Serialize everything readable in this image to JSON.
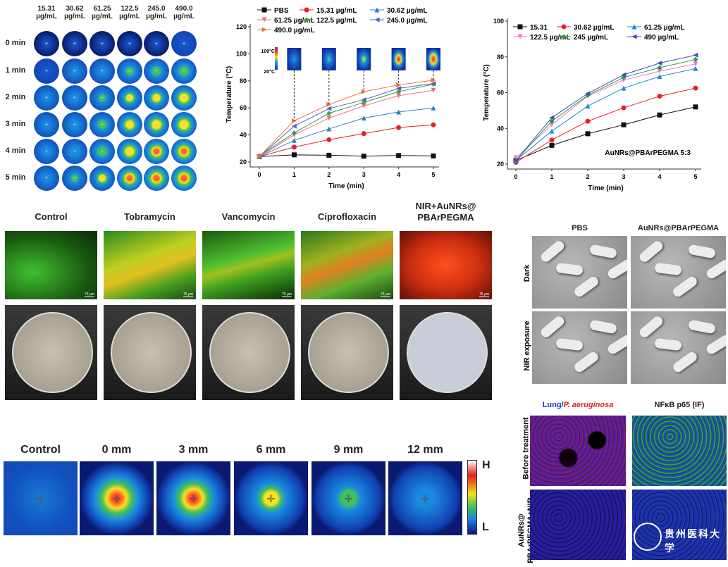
{
  "thermal_grid": {
    "columns": [
      "15.31\nµg/mL",
      "30.62\nµg/mL",
      "61.25\nµg/mL",
      "122.5\nµg/mL",
      "245.0\nµg/mL",
      "490.0\nµg/mL"
    ],
    "col_top": [
      "15.31",
      "30.62",
      "61.25",
      "122.5",
      "245.0",
      "490.0"
    ],
    "col_unit": "µg/mL",
    "rows": [
      "0 min",
      "1 min",
      "2 min",
      "3 min",
      "4 min",
      "5 min"
    ],
    "heat_levels": [
      [
        0,
        0,
        0,
        0,
        0,
        0.1
      ],
      [
        0.1,
        0.15,
        0.2,
        0.4,
        0.45,
        0.5
      ],
      [
        0.15,
        0.2,
        0.35,
        0.55,
        0.6,
        0.7
      ],
      [
        0.15,
        0.25,
        0.45,
        0.65,
        0.72,
        0.75
      ],
      [
        0.2,
        0.3,
        0.5,
        0.72,
        0.78,
        0.8
      ],
      [
        0.22,
        0.35,
        0.55,
        0.78,
        0.82,
        0.85
      ]
    ]
  },
  "chart_data": [
    {
      "type": "line",
      "xlabel": "Time (min)",
      "ylabel": "Temperature (°C)",
      "xlim": [
        0,
        5
      ],
      "ylim": [
        20,
        120
      ],
      "xticks": [
        0,
        1,
        2,
        3,
        4,
        5
      ],
      "yticks": [
        20,
        40,
        60,
        80,
        100,
        120
      ],
      "legend_position": "top",
      "x": [
        0,
        1,
        2,
        3,
        4,
        5
      ],
      "inset": {
        "top_label": "100°C",
        "bottom_label": "20°C"
      },
      "series": [
        {
          "name": "PBS",
          "values": [
            24,
            25.3,
            25,
            24.3,
            24.8,
            24.5
          ],
          "color": "#111111",
          "marker": "square"
        },
        {
          "name": "15.31 µg/mL",
          "values": [
            24,
            31,
            36.5,
            41,
            45.5,
            47.5
          ],
          "color": "#e8202a",
          "marker": "circle"
        },
        {
          "name": "30.62 µg/mL",
          "values": [
            24,
            36,
            44.5,
            52.5,
            57,
            60
          ],
          "color": "#2f7fc8",
          "marker": "triangle-up"
        },
        {
          "name": "61.25 µg/mL",
          "values": [
            24,
            40,
            52.5,
            61.5,
            69,
            73
          ],
          "color": "#ef6f8a",
          "marker": "triangle-down"
        },
        {
          "name": "122.5 µg/mL",
          "values": [
            24.5,
            41.5,
            56,
            64,
            72,
            77.5
          ],
          "color": "#3aa24a",
          "marker": "diamond"
        },
        {
          "name": "245.0 µg/mL",
          "values": [
            24,
            46.5,
            59.5,
            66,
            74.5,
            78
          ],
          "color": "#4a66b8",
          "marker": "triangle-left"
        },
        {
          "name": "490.0 µg/mL",
          "values": [
            24,
            50.5,
            62.5,
            72,
            77,
            80.5
          ],
          "color": "#f07040",
          "marker": "triangle-right"
        }
      ]
    },
    {
      "type": "line",
      "xlabel": "Time (min)",
      "ylabel": "Temperature (°C)",
      "xlim": [
        0,
        5
      ],
      "ylim": [
        20,
        100
      ],
      "xticks": [
        0,
        1,
        2,
        3,
        4,
        5
      ],
      "yticks": [
        20,
        40,
        60,
        80,
        100
      ],
      "legend_position": "top",
      "annotation": "AuNRs@PBArPEGMA 5:3",
      "x": [
        0,
        1,
        2,
        3,
        4,
        5
      ],
      "series": [
        {
          "name": "15.31",
          "values": [
            22,
            30.5,
            37,
            42,
            47.5,
            52
          ],
          "color": "#111111",
          "marker": "square"
        },
        {
          "name": "30.62 µg/mL",
          "values": [
            21,
            33.5,
            44,
            51.5,
            58,
            62.5
          ],
          "color": "#e8202a",
          "marker": "circle"
        },
        {
          "name": "61.25 µg/mL",
          "values": [
            22,
            38.5,
            52.5,
            62.5,
            69,
            73.5
          ],
          "color": "#1f8ad0",
          "marker": "triangle-up"
        },
        {
          "name": "122.5 µg/mL",
          "values": [
            23.5,
            42,
            58,
            67,
            72,
            76
          ],
          "color": "#f07ad0",
          "marker": "triangle-down"
        },
        {
          "name": "245 µg/mL",
          "values": [
            22,
            44,
            58.5,
            68.5,
            74,
            78.5
          ],
          "color": "#20a040",
          "marker": "diamond"
        },
        {
          "name": "490 µg/mL",
          "values": [
            22,
            46,
            59.5,
            70,
            76.5,
            81
          ],
          "color": "#4050b0",
          "marker": "triangle-left"
        }
      ]
    }
  ],
  "biofilm": {
    "groups": [
      "Control",
      "Tobramycin",
      "Vancomycin",
      "Ciprofloxacin",
      "NIR+AuNRs@\nPBArPEGMA"
    ],
    "scale_bar": "75 µm"
  },
  "sem": {
    "columns": [
      "PBS",
      "AuNRs@PBArPEGMA"
    ],
    "rows": [
      "Dark",
      "NIR exposure"
    ]
  },
  "distance": {
    "labels": [
      "Control",
      "0 mm",
      "3 mm",
      "6 mm",
      "9 mm",
      "12 mm"
    ],
    "heat_levels": [
      0,
      0.9,
      0.85,
      0.6,
      0.45,
      0.3
    ],
    "colorbar": {
      "high": "H",
      "low": "L"
    }
  },
  "lung": {
    "col1_a": "Lung/",
    "col1_b": "P. aeruginosa",
    "col2": "NFκB p65 (IF)",
    "rows": [
      "Before treatment",
      "AuNRs@\nPBArPEGMA+NIR"
    ],
    "watermark": "贵州医科大学 GUIZHOU MEDICAL UNIVERSITY"
  }
}
